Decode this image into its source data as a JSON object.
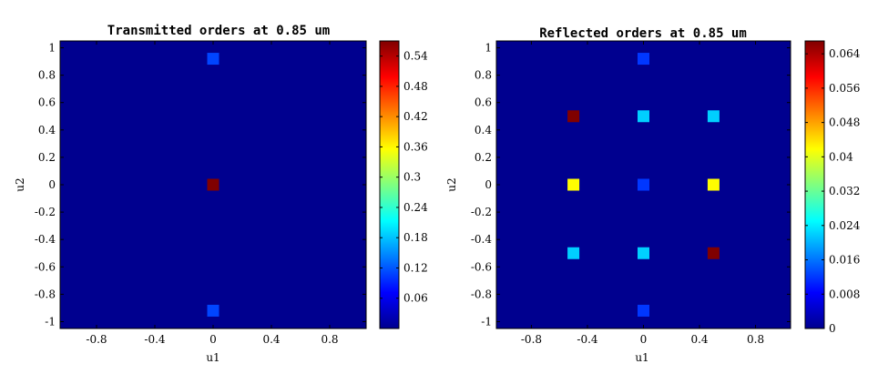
{
  "chart_data": [
    {
      "type": "heatmap",
      "title": "Transmitted orders at 0.85 um",
      "xlabel": "u1",
      "ylabel": "u2",
      "xlim": [
        -1.05,
        1.05
      ],
      "ylim": [
        -1.05,
        1.05
      ],
      "x_ticks": [
        -0.8,
        -0.4,
        0,
        0.4,
        0.8
      ],
      "x_tick_labels": [
        "-0.8",
        "-0.4",
        "0",
        "0.4",
        "0.8"
      ],
      "y_ticks": [
        1,
        0.8,
        0.6,
        0.4,
        0.2,
        0,
        -0.2,
        -0.4,
        -0.6,
        -0.8,
        -1
      ],
      "y_tick_labels": [
        "1",
        "0.8",
        "0.6",
        "0.4",
        "0.2",
        "0",
        "-0.2",
        "-0.4",
        "-0.6",
        "-0.8",
        "-1"
      ],
      "colormap": "jet",
      "clim": [
        0,
        0.57
      ],
      "colorbar_ticks": [
        0.06,
        0.12,
        0.18,
        0.24,
        0.3,
        0.36,
        0.42,
        0.48,
        0.54
      ],
      "colorbar_tick_labels": [
        "0.06",
        "0.12",
        "0.18",
        "0.24",
        "0.3",
        "0.36",
        "0.42",
        "0.48",
        "0.54"
      ],
      "points": [
        {
          "u1": 0,
          "u2": 0.92,
          "value": 0.11
        },
        {
          "u1": 0,
          "u2": 0,
          "value": 0.57
        },
        {
          "u1": 0,
          "u2": -0.92,
          "value": 0.11
        }
      ]
    },
    {
      "type": "heatmap",
      "title": "Reflected orders at 0.85 um",
      "xlabel": "u1",
      "ylabel": "u2",
      "xlim": [
        -1.05,
        1.05
      ],
      "ylim": [
        -1.05,
        1.05
      ],
      "x_ticks": [
        -0.8,
        -0.4,
        0,
        0.4,
        0.8
      ],
      "x_tick_labels": [
        "-0.8",
        "-0.4",
        "0",
        "0.4",
        "0.8"
      ],
      "y_ticks": [
        1,
        0.8,
        0.6,
        0.4,
        0.2,
        0,
        -0.2,
        -0.4,
        -0.6,
        -0.8,
        -1
      ],
      "y_tick_labels": [
        "1",
        "0.8",
        "0.6",
        "0.4",
        "0.2",
        "0",
        "-0.2",
        "-0.4",
        "-0.6",
        "-0.8",
        "-1"
      ],
      "colormap": "jet",
      "clim": [
        0,
        0.067
      ],
      "colorbar_ticks": [
        0,
        0.008,
        0.016,
        0.024,
        0.032,
        0.04,
        0.048,
        0.056,
        0.064
      ],
      "colorbar_tick_labels": [
        "0",
        "0.008",
        "0.016",
        "0.024",
        "0.032",
        "0.04",
        "0.048",
        "0.056",
        "0.064"
      ],
      "points": [
        {
          "u1": 0,
          "u2": 0.92,
          "value": 0.012
        },
        {
          "u1": -0.5,
          "u2": 0.5,
          "value": 0.067
        },
        {
          "u1": 0,
          "u2": 0.5,
          "value": 0.022
        },
        {
          "u1": 0.5,
          "u2": 0.5,
          "value": 0.022
        },
        {
          "u1": -0.5,
          "u2": 0,
          "value": 0.042
        },
        {
          "u1": 0,
          "u2": 0,
          "value": 0.012
        },
        {
          "u1": 0.5,
          "u2": 0,
          "value": 0.042
        },
        {
          "u1": -0.5,
          "u2": -0.5,
          "value": 0.022
        },
        {
          "u1": 0,
          "u2": -0.5,
          "value": 0.022
        },
        {
          "u1": 0.5,
          "u2": -0.5,
          "value": 0.067
        },
        {
          "u1": 0,
          "u2": -0.92,
          "value": 0.012
        }
      ]
    }
  ]
}
